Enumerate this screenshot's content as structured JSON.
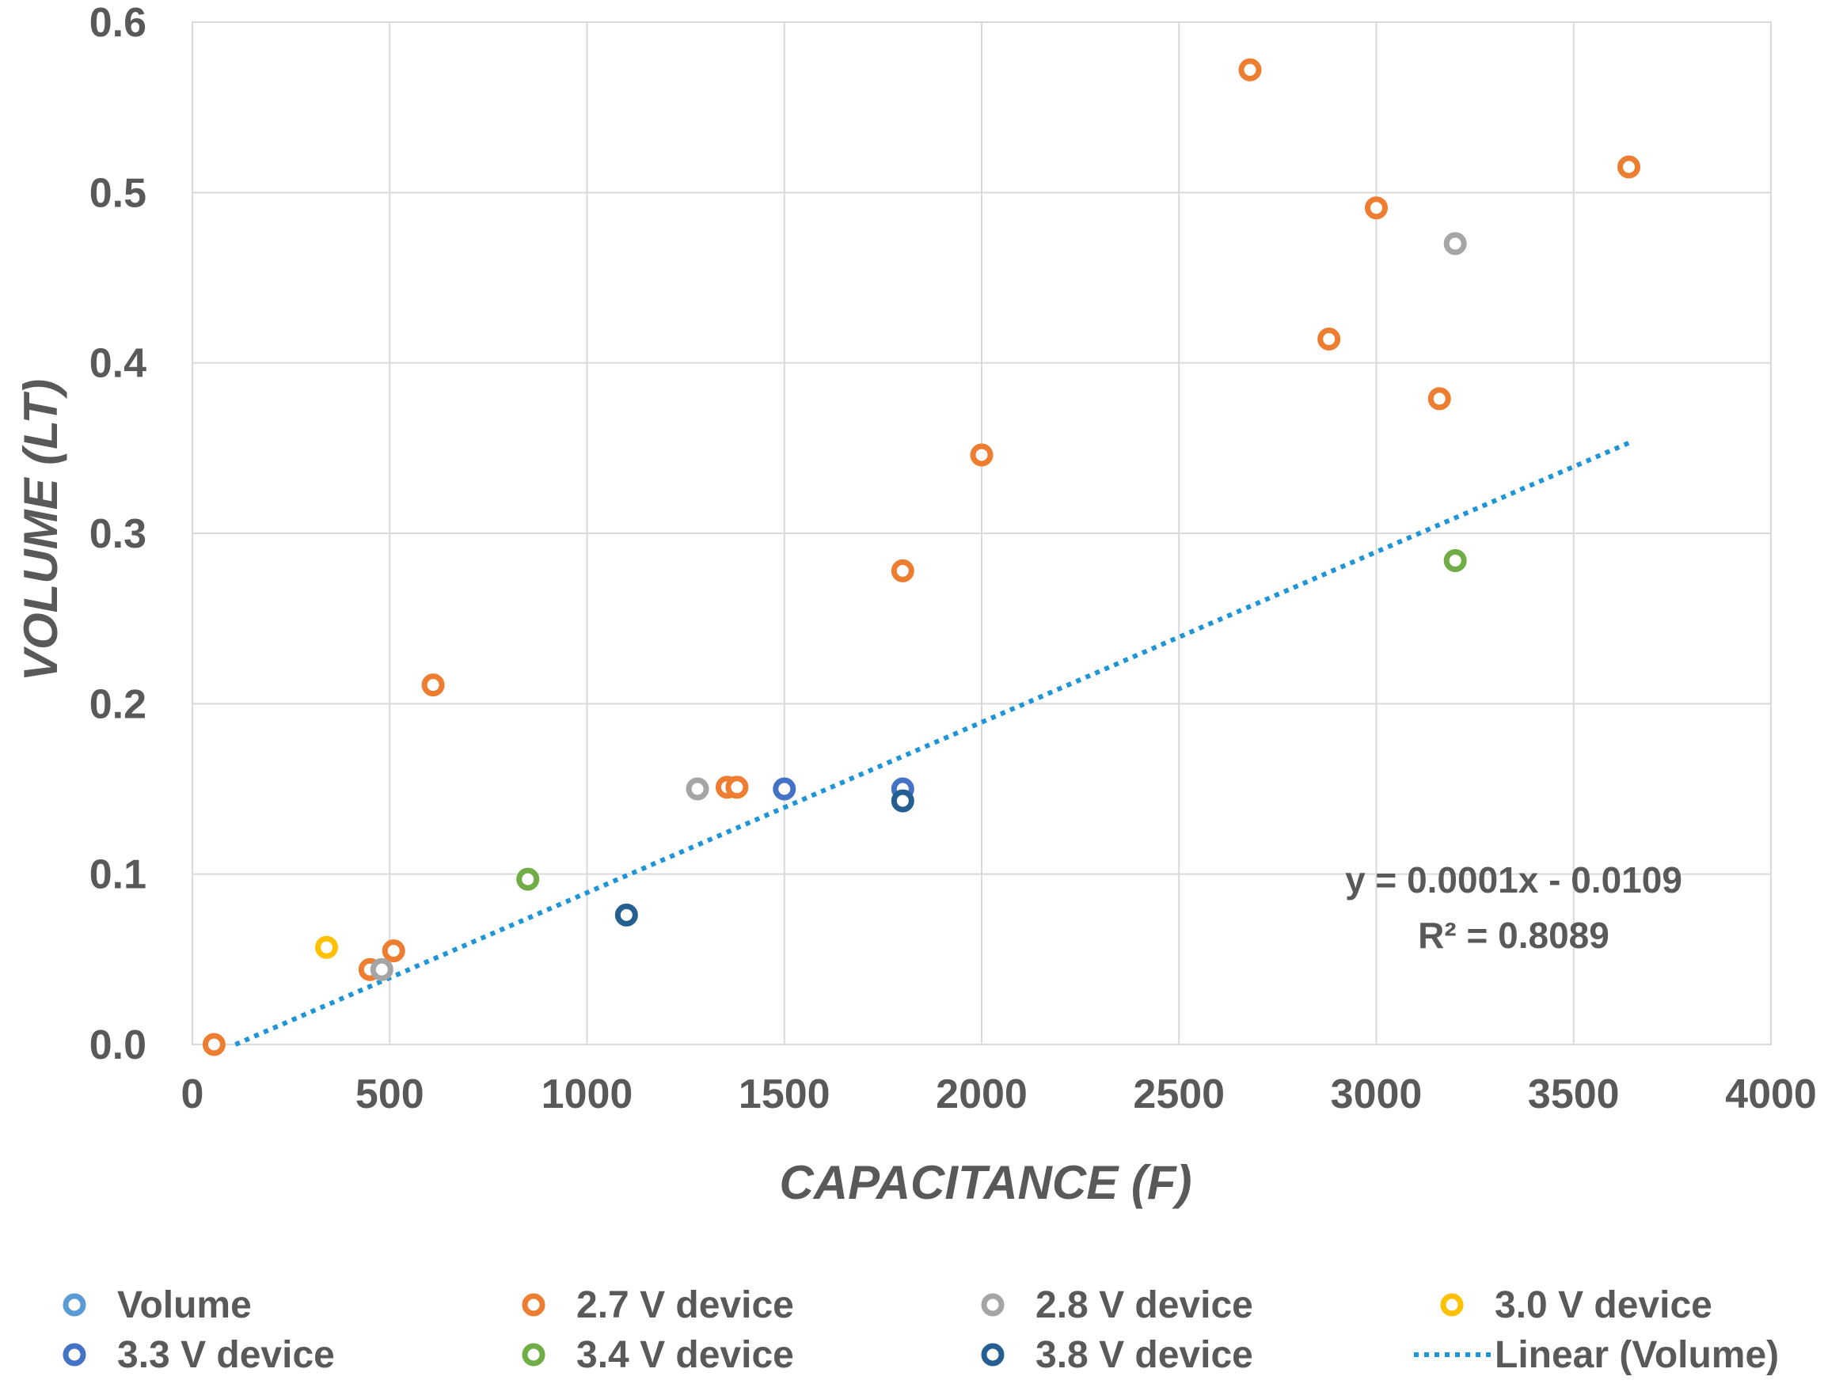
{
  "chart_data": {
    "type": "scatter",
    "title": "",
    "xlabel": "CAPACITANCE (F)",
    "ylabel": "VOLUME (LT)",
    "xlim": [
      0,
      4000
    ],
    "ylim": [
      0,
      0.6
    ],
    "x_ticks": [
      "0",
      "500",
      "1000",
      "1500",
      "2000",
      "2500",
      "3000",
      "3500",
      "4000"
    ],
    "y_ticks": [
      "0.0",
      "0.1",
      "0.2",
      "0.3",
      "0.4",
      "0.5",
      "0.6"
    ],
    "grid": true,
    "legend_position": "bottom",
    "series": [
      {
        "name": "Volume",
        "color": "#5b9bd5",
        "points": []
      },
      {
        "name": "2.7 V device",
        "color": "#ed7d31",
        "points": [
          [
            55,
            0.0
          ],
          [
            450,
            0.044
          ],
          [
            510,
            0.055
          ],
          [
            610,
            0.211
          ],
          [
            1355,
            0.151
          ],
          [
            1380,
            0.151
          ],
          [
            1800,
            0.278
          ],
          [
            2000,
            0.346
          ],
          [
            2680,
            0.572
          ],
          [
            2880,
            0.414
          ],
          [
            3000,
            0.491
          ],
          [
            3160,
            0.379
          ],
          [
            3640,
            0.515
          ]
        ]
      },
      {
        "name": "2.8 V device",
        "color": "#a5a5a5",
        "points": [
          [
            480,
            0.044
          ],
          [
            1280,
            0.15
          ],
          [
            3200,
            0.47
          ]
        ]
      },
      {
        "name": "3.0 V device",
        "color": "#ffc000",
        "points": [
          [
            340,
            0.057
          ]
        ]
      },
      {
        "name": "3.3 V device",
        "color": "#4472c4",
        "points": [
          [
            1500,
            0.15
          ],
          [
            1800,
            0.15
          ]
        ]
      },
      {
        "name": "3.4 V device",
        "color": "#70ad47",
        "points": [
          [
            850,
            0.097
          ],
          [
            3200,
            0.284
          ]
        ]
      },
      {
        "name": "3.8 V device",
        "color": "#255e91",
        "points": [
          [
            1100,
            0.076
          ],
          [
            1800,
            0.143
          ]
        ]
      }
    ],
    "trendline": {
      "name": "Linear (Volume)",
      "type": "linear",
      "slope": 0.0001,
      "intercept": -0.0109,
      "x_range": [
        109,
        3640
      ],
      "equation": "y = 0.0001x - 0.0109",
      "r_squared": "R² = 0.8089",
      "color": "#1f95d8"
    }
  }
}
